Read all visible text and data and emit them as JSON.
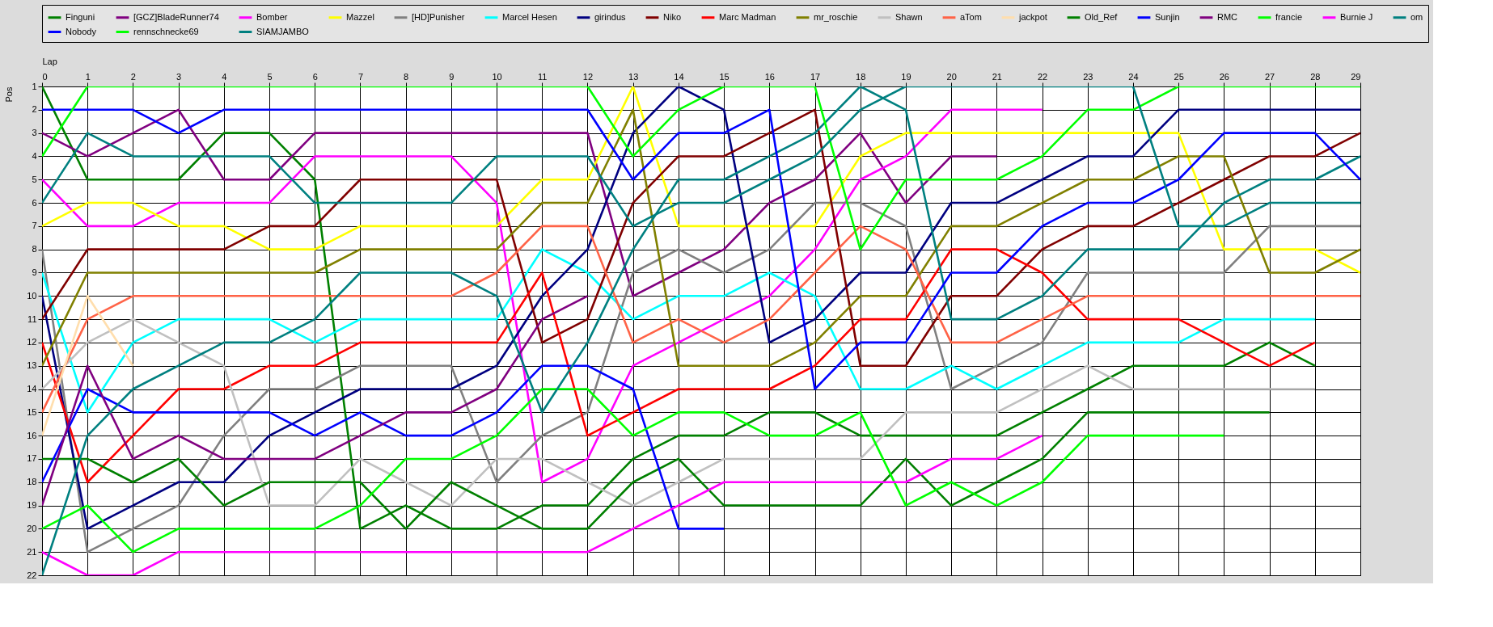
{
  "chart_data": {
    "type": "line",
    "xlabel": "Lap",
    "ylabel": "Pos",
    "x": [
      0,
      1,
      2,
      3,
      4,
      5,
      6,
      7,
      8,
      9,
      10,
      11,
      12,
      13,
      14,
      15,
      16,
      17,
      18,
      19,
      20,
      21,
      22,
      23,
      24,
      25,
      26,
      27,
      28,
      29
    ],
    "xlim": [
      0,
      29
    ],
    "xticks": [
      0,
      1,
      2,
      3,
      4,
      5,
      6,
      7,
      8,
      9,
      10,
      11,
      12,
      13,
      14,
      15,
      16,
      17,
      18,
      19,
      20,
      21,
      22,
      23,
      24,
      25,
      26,
      27,
      28,
      29
    ],
    "ylim": [
      22,
      1
    ],
    "yticks": [
      1,
      2,
      3,
      4,
      5,
      6,
      7,
      8,
      9,
      10,
      11,
      12,
      13,
      14,
      15,
      16,
      17,
      18,
      19,
      20,
      21,
      22
    ],
    "grid": true,
    "legend": "top",
    "line_style": "solid",
    "series": [
      {
        "name": "Finguni",
        "color": "#008000",
        "values": [
          1,
          5,
          5,
          5,
          3,
          3,
          5,
          20,
          19,
          20,
          20,
          19,
          19,
          17,
          16,
          16,
          15,
          15,
          16,
          16,
          16,
          16,
          15,
          14,
          13,
          13,
          13,
          12,
          13,
          null
        ]
      },
      {
        "name": "[GCZ]BladeRunner74",
        "color": "#800080",
        "values": [
          3,
          4,
          3,
          2,
          5,
          5,
          3,
          3,
          3,
          3,
          3,
          3,
          3,
          10,
          9,
          8,
          6,
          5,
          3,
          6,
          4,
          4,
          null,
          null,
          null,
          null,
          null,
          null,
          null,
          null
        ]
      },
      {
        "name": "Bomber",
        "color": "#ff00ff",
        "values": [
          5,
          7,
          7,
          6,
          6,
          6,
          4,
          4,
          4,
          4,
          6,
          18,
          17,
          13,
          12,
          11,
          10,
          8,
          5,
          4,
          2,
          2,
          2,
          null,
          null,
          null,
          null,
          null,
          null,
          null
        ]
      },
      {
        "name": "Mazzel",
        "color": "#ffff00",
        "values": [
          7,
          6,
          6,
          7,
          7,
          8,
          8,
          7,
          7,
          7,
          7,
          5,
          5,
          1,
          7,
          7,
          7,
          7,
          4,
          3,
          3,
          3,
          3,
          3,
          3,
          3,
          8,
          8,
          8,
          9
        ]
      },
      {
        "name": "[HD]Punisher",
        "color": "#808080",
        "values": [
          8,
          21,
          20,
          19,
          16,
          14,
          14,
          13,
          13,
          13,
          18,
          16,
          15,
          9,
          8,
          9,
          8,
          6,
          6,
          7,
          14,
          13,
          12,
          9,
          9,
          9,
          9,
          7,
          7,
          7
        ]
      },
      {
        "name": "Marcel Hesen",
        "color": "#00ffff",
        "values": [
          9,
          15,
          12,
          11,
          11,
          11,
          12,
          11,
          11,
          11,
          11,
          8,
          9,
          11,
          10,
          10,
          9,
          10,
          14,
          14,
          13,
          14,
          13,
          12,
          12,
          12,
          11,
          11,
          11,
          null
        ]
      },
      {
        "name": "girindus",
        "color": "#000080",
        "values": [
          10,
          20,
          19,
          18,
          18,
          16,
          15,
          14,
          14,
          14,
          13,
          10,
          8,
          3,
          1,
          2,
          12,
          11,
          9,
          9,
          6,
          6,
          5,
          4,
          4,
          2,
          2,
          2,
          2,
          2
        ]
      },
      {
        "name": "Niko",
        "color": "#800000",
        "values": [
          11,
          8,
          8,
          8,
          8,
          7,
          7,
          5,
          5,
          5,
          5,
          12,
          11,
          6,
          4,
          4,
          3,
          2,
          13,
          13,
          10,
          10,
          8,
          7,
          7,
          6,
          5,
          4,
          4,
          3
        ]
      },
      {
        "name": "Marc Madman",
        "color": "#ff0000",
        "values": [
          12,
          18,
          16,
          14,
          14,
          13,
          13,
          12,
          12,
          12,
          12,
          9,
          16,
          15,
          14,
          14,
          14,
          13,
          11,
          11,
          8,
          8,
          9,
          11,
          11,
          11,
          12,
          13,
          12,
          null
        ]
      },
      {
        "name": "mr_roschie",
        "color": "#808000",
        "values": [
          13,
          9,
          9,
          9,
          9,
          9,
          9,
          8,
          8,
          8,
          8,
          6,
          6,
          2,
          13,
          13,
          13,
          12,
          10,
          10,
          7,
          7,
          6,
          5,
          5,
          4,
          4,
          9,
          9,
          8
        ]
      },
      {
        "name": "Shawn",
        "color": "#c0c0c0",
        "values": [
          14,
          12,
          11,
          12,
          13,
          19,
          19,
          17,
          18,
          19,
          17,
          17,
          18,
          19,
          18,
          17,
          17,
          17,
          17,
          15,
          15,
          15,
          14,
          13,
          14,
          14,
          14,
          14,
          14,
          null
        ]
      },
      {
        "name": "aTom",
        "color": "#ff6347",
        "values": [
          15,
          11,
          10,
          10,
          10,
          10,
          10,
          10,
          10,
          10,
          9,
          7,
          7,
          12,
          11,
          12,
          11,
          9,
          7,
          8,
          12,
          12,
          11,
          10,
          10,
          10,
          10,
          10,
          10,
          10
        ]
      },
      {
        "name": "jackpot",
        "color": "#ffdead",
        "values": [
          16,
          10,
          13,
          null,
          null,
          null,
          null,
          null,
          null,
          null,
          null,
          null,
          null,
          null,
          null,
          null,
          null,
          null,
          null,
          null,
          null,
          null,
          null,
          null,
          null,
          null,
          null,
          null,
          null,
          null
        ]
      },
      {
        "name": "Old_Ref",
        "color": "#008000",
        "values": [
          17,
          17,
          18,
          17,
          19,
          18,
          18,
          18,
          20,
          18,
          19,
          20,
          20,
          18,
          17,
          19,
          19,
          19,
          19,
          17,
          19,
          18,
          17,
          15,
          15,
          15,
          15,
          15,
          null,
          null
        ]
      },
      {
        "name": "Sunjin",
        "color": "#0000ff",
        "values": [
          18,
          14,
          15,
          15,
          15,
          15,
          16,
          15,
          16,
          16,
          15,
          13,
          13,
          14,
          20,
          20,
          null,
          null,
          null,
          null,
          null,
          null,
          null,
          null,
          null,
          null,
          null,
          null,
          null,
          null
        ]
      },
      {
        "name": "RMC",
        "color": "#800080",
        "values": [
          19,
          13,
          17,
          16,
          17,
          17,
          17,
          16,
          15,
          15,
          14,
          11,
          10,
          null,
          null,
          null,
          null,
          null,
          null,
          null,
          null,
          null,
          null,
          null,
          null,
          null,
          null,
          null,
          null,
          null
        ]
      },
      {
        "name": "francie",
        "color": "#00ff00",
        "values": [
          20,
          19,
          21,
          20,
          20,
          20,
          20,
          19,
          17,
          17,
          16,
          14,
          14,
          16,
          15,
          15,
          16,
          16,
          15,
          19,
          18,
          19,
          18,
          16,
          16,
          16,
          16,
          null,
          null,
          null
        ]
      },
      {
        "name": "Burnie J",
        "color": "#ff00ff",
        "values": [
          21,
          22,
          22,
          21,
          21,
          21,
          21,
          21,
          21,
          21,
          21,
          21,
          21,
          20,
          19,
          18,
          18,
          18,
          18,
          18,
          17,
          17,
          16,
          null,
          null,
          null,
          null,
          null,
          null,
          null
        ]
      },
      {
        "name": "om",
        "color": "#008080",
        "values": [
          22,
          16,
          14,
          13,
          12,
          12,
          11,
          9,
          9,
          9,
          10,
          15,
          12,
          8,
          5,
          5,
          4,
          3,
          1,
          2,
          11,
          11,
          10,
          8,
          8,
          8,
          6,
          5,
          5,
          4
        ]
      },
      {
        "name": "Nobody",
        "color": "#0000ff",
        "values": [
          2,
          2,
          2,
          3,
          2,
          2,
          2,
          2,
          2,
          2,
          2,
          2,
          2,
          5,
          3,
          3,
          2,
          14,
          12,
          12,
          9,
          9,
          7,
          6,
          6,
          5,
          3,
          3,
          3,
          5
        ]
      },
      {
        "name": "rennschnecke69",
        "color": "#00ff00",
        "values": [
          4,
          1,
          1,
          1,
          1,
          1,
          1,
          1,
          1,
          1,
          1,
          1,
          1,
          4,
          2,
          1,
          1,
          1,
          8,
          5,
          5,
          5,
          4,
          2,
          2,
          1,
          1,
          1,
          1,
          1
        ]
      },
      {
        "name": "SIAMJAMBO",
        "color": "#008080",
        "values": [
          6,
          3,
          4,
          4,
          4,
          4,
          6,
          6,
          6,
          6,
          4,
          4,
          4,
          7,
          6,
          6,
          5,
          4,
          2,
          1,
          1,
          1,
          1,
          1,
          1,
          7,
          7,
          6,
          6,
          6
        ]
      }
    ]
  }
}
